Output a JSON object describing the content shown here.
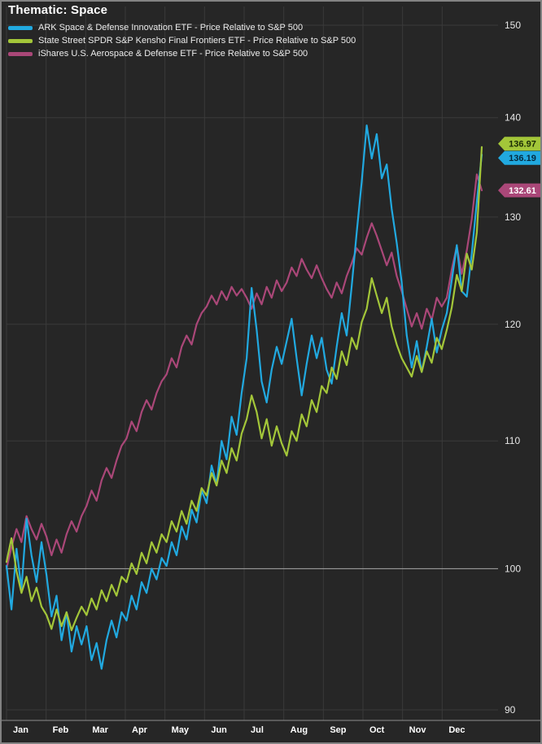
{
  "window": {
    "title": "Thematic: Space"
  },
  "chart_data": {
    "type": "line",
    "title": "Thematic: Space",
    "legend_position": "top-left",
    "grid": true,
    "y_scale": "log",
    "y_axis_side": "right",
    "x_tick_labels": [
      "Jan",
      "Feb",
      "Mar",
      "Apr",
      "May",
      "Jun",
      "Jul",
      "Aug",
      "Sep",
      "Oct",
      "Nov",
      "Dec"
    ],
    "y_ticks": [
      90,
      100,
      110,
      120,
      130,
      140,
      150
    ],
    "ylim": [
      88.5,
      151.5
    ],
    "y_emphasized_gridline": 100,
    "colors": {
      "background": "#262626",
      "gridline": "#3a3a3a",
      "gridline_major": "#a8a8a8",
      "axis_text": "#e6e6e6",
      "border": "#828282"
    },
    "series": [
      {
        "name": "ARK Space & Defense Innovation ETF - Price Relative to S&P 500",
        "color": "#21a9e0",
        "last_value": 136.19,
        "last_value_label": "136.19",
        "tag_text_color": "#04293d",
        "values": [
          100.2,
          97.0,
          101.5,
          98.5,
          103.8,
          101.0,
          99.0,
          102.0,
          99.5,
          96.5,
          98.0,
          94.8,
          96.8,
          94.0,
          95.8,
          94.5,
          95.8,
          93.4,
          94.6,
          92.8,
          94.8,
          96.2,
          95.0,
          96.8,
          96.2,
          98.0,
          97.0,
          99.0,
          98.2,
          100.0,
          99.2,
          100.8,
          100.2,
          102.0,
          101.0,
          103.2,
          102.2,
          104.5,
          103.5,
          106.0,
          105.0,
          108.0,
          106.5,
          110.0,
          108.5,
          112.0,
          110.5,
          114.0,
          117.0,
          123.3,
          119.5,
          115.0,
          113.2,
          116.0,
          118.0,
          116.5,
          118.5,
          120.5,
          117.0,
          113.8,
          116.5,
          119.0,
          117.0,
          118.8,
          116.0,
          114.8,
          118.0,
          121.0,
          119.0,
          123.5,
          128.5,
          133.5,
          139.2,
          135.8,
          138.3,
          133.8,
          135.2,
          130.8,
          127.5,
          123.8,
          119.0,
          116.2,
          118.5,
          115.8,
          118.0,
          120.5,
          117.5,
          119.5,
          121.0,
          124.0,
          127.3,
          123.0,
          122.5,
          126.5,
          131.5,
          136.19
        ]
      },
      {
        "name": "State Street SPDR S&P Kensho Final Frontiers ETF - Price Relative to S&P 500",
        "color": "#a3c639",
        "last_value": 136.97,
        "last_value_label": "136.97",
        "tag_text_color": "#1a2b05",
        "values": [
          100.5,
          102.3,
          99.8,
          98.2,
          99.4,
          97.6,
          98.6,
          97.2,
          96.6,
          95.6,
          97.0,
          95.8,
          96.8,
          95.5,
          96.4,
          97.2,
          96.6,
          97.8,
          97.0,
          98.4,
          97.6,
          98.8,
          98.0,
          99.4,
          99.0,
          100.4,
          99.6,
          101.2,
          100.4,
          102.0,
          101.2,
          102.6,
          102.0,
          103.6,
          102.8,
          104.4,
          103.4,
          105.2,
          104.4,
          106.2,
          105.6,
          107.4,
          106.4,
          108.4,
          107.4,
          109.4,
          108.4,
          110.6,
          111.8,
          113.8,
          112.4,
          110.2,
          111.8,
          109.6,
          111.2,
          109.8,
          108.8,
          110.8,
          110.0,
          112.2,
          111.2,
          113.4,
          112.4,
          114.6,
          114.0,
          116.2,
          115.2,
          117.6,
          116.4,
          118.8,
          117.8,
          120.2,
          121.4,
          124.2,
          122.6,
          121.0,
          122.4,
          119.8,
          118.2,
          117.0,
          116.2,
          115.4,
          117.2,
          115.8,
          117.6,
          116.6,
          118.8,
          117.8,
          119.5,
          121.5,
          124.5,
          123.0,
          126.5,
          125.0,
          128.5,
          136.97
        ]
      },
      {
        "name": "iShares U.S. Aerospace & Defense ETF - Price Relative to S&P 500",
        "color": "#aa4778",
        "last_value": 132.61,
        "last_value_label": "132.61",
        "tag_text_color": "#ffffff",
        "values": [
          100.0,
          101.6,
          103.0,
          102.0,
          104.0,
          103.0,
          102.2,
          103.4,
          102.4,
          101.0,
          102.2,
          101.2,
          102.6,
          103.6,
          102.8,
          104.0,
          104.8,
          106.0,
          105.2,
          106.8,
          107.8,
          107.0,
          108.4,
          109.6,
          110.2,
          111.6,
          110.8,
          112.4,
          113.4,
          112.6,
          114.0,
          115.0,
          115.6,
          117.0,
          116.2,
          118.0,
          119.0,
          118.2,
          120.0,
          121.0,
          121.6,
          122.6,
          121.8,
          123.0,
          122.2,
          123.4,
          122.6,
          123.2,
          122.4,
          121.4,
          122.8,
          121.8,
          123.4,
          122.4,
          124.0,
          123.0,
          123.8,
          125.2,
          124.4,
          126.0,
          125.0,
          124.2,
          125.4,
          124.2,
          123.2,
          122.4,
          123.8,
          122.8,
          124.4,
          125.6,
          127.0,
          126.4,
          128.0,
          129.4,
          128.2,
          126.8,
          125.4,
          126.6,
          124.4,
          123.0,
          121.4,
          119.8,
          121.0,
          119.6,
          121.4,
          120.4,
          122.4,
          121.6,
          122.4,
          125.0,
          127.2,
          124.6,
          126.8,
          129.8,
          134.2,
          132.61
        ]
      }
    ]
  }
}
